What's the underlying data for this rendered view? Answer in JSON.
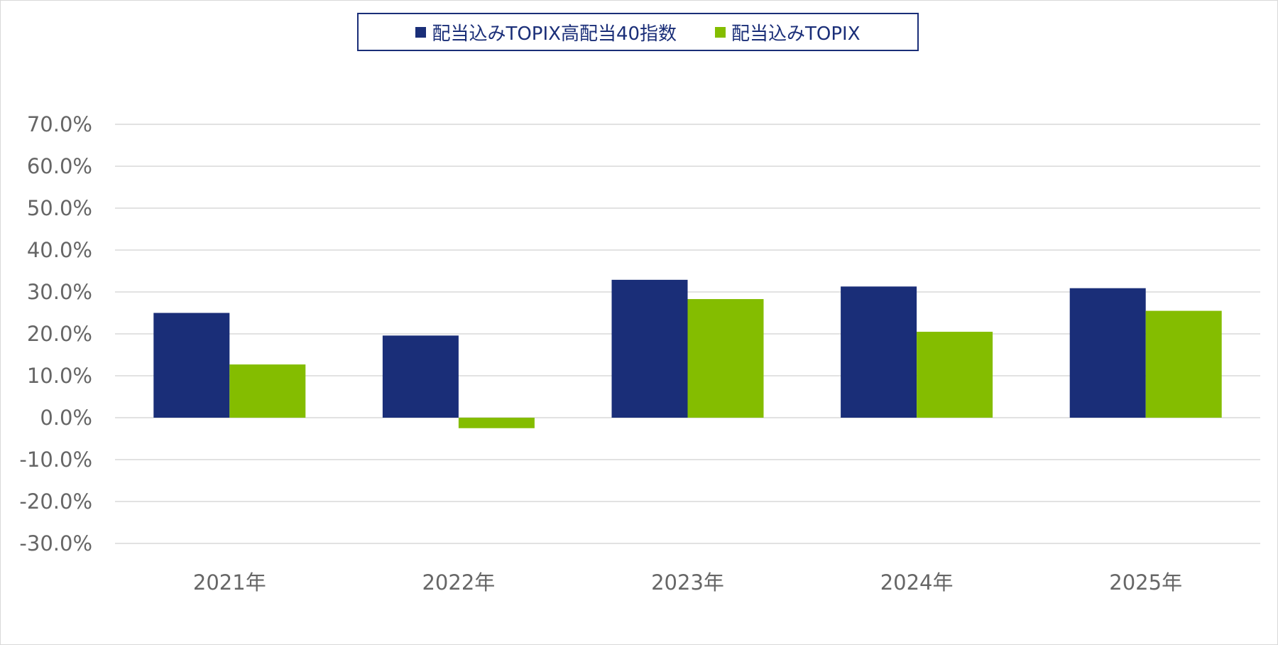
{
  "chart_data": {
    "type": "bar",
    "categories": [
      "2021年",
      "2022年",
      "2023年",
      "2024年",
      "2025年"
    ],
    "series": [
      {
        "name": "配当込みTOPIX高配当40指数",
        "color": "#1a2e78",
        "values": [
          25.0,
          19.6,
          32.9,
          31.3,
          30.9
        ]
      },
      {
        "name": "配当込みTOPIX",
        "color": "#84bd00",
        "values": [
          12.7,
          -2.5,
          28.3,
          20.5,
          25.5
        ]
      }
    ],
    "ylim": [
      -30,
      70
    ],
    "yticks": [
      70,
      60,
      50,
      40,
      30,
      20,
      10,
      0,
      -10,
      -20,
      -30
    ],
    "ytick_labels": [
      "70.0%",
      "60.0%",
      "50.0%",
      "40.0%",
      "30.0%",
      "20.0%",
      "10.0%",
      "0.0%",
      "-10.0%",
      "-20.0%",
      "-30.0%"
    ],
    "grid": true,
    "legend_position": "top-center"
  }
}
